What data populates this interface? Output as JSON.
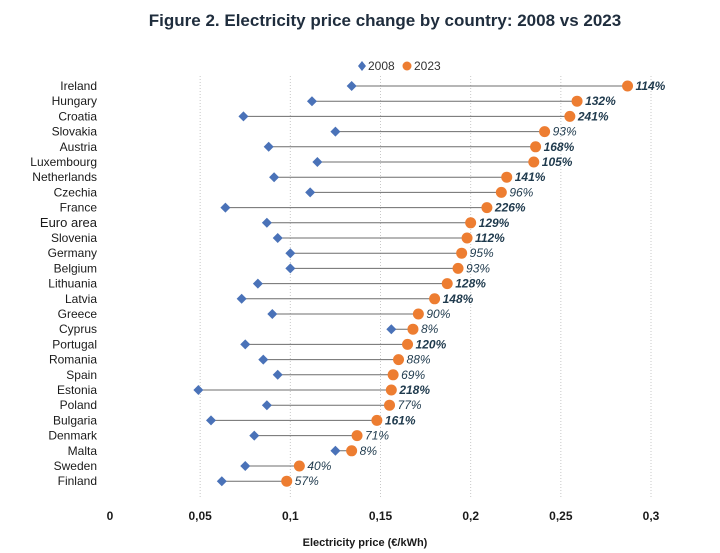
{
  "chart_data": {
    "type": "dot-plot",
    "title": "Figure 2.  Electricity price change by country: 2008 vs 2023",
    "xlabel": "Electricity price (€/kWh)",
    "ylabel": "",
    "xlim": [
      0,
      0.3
    ],
    "xticks": [
      {
        "value": 0,
        "label": "0"
      },
      {
        "value": 0.05,
        "label": "0,05"
      },
      {
        "value": 0.1,
        "label": "0,1"
      },
      {
        "value": 0.15,
        "label": "0,15"
      },
      {
        "value": 0.2,
        "label": "0,2"
      },
      {
        "value": 0.25,
        "label": "0,25"
      },
      {
        "value": 0.3,
        "label": "0,3"
      }
    ],
    "grid": true,
    "legend": {
      "position": "top-center",
      "entries": [
        {
          "label": "2008",
          "color": "#4a72b8",
          "marker": "diamond"
        },
        {
          "label": "2023",
          "color": "#ed7d31",
          "marker": "circle"
        }
      ]
    },
    "rows": [
      {
        "country": "Ireland",
        "v2008": 0.134,
        "v2023": 0.287,
        "change": "114%",
        "bold": true
      },
      {
        "country": "Hungary",
        "v2008": 0.112,
        "v2023": 0.259,
        "change": "132%",
        "bold": true
      },
      {
        "country": "Croatia",
        "v2008": 0.074,
        "v2023": 0.255,
        "change": "241%",
        "bold": true
      },
      {
        "country": "Slovakia",
        "v2008": 0.125,
        "v2023": 0.241,
        "change": "93%",
        "bold": false
      },
      {
        "country": "Austria",
        "v2008": 0.088,
        "v2023": 0.236,
        "change": "168%",
        "bold": true
      },
      {
        "country": "Luxembourg",
        "v2008": 0.115,
        "v2023": 0.235,
        "change": "105%",
        "bold": true
      },
      {
        "country": "Netherlands",
        "v2008": 0.091,
        "v2023": 0.22,
        "change": "141%",
        "bold": true
      },
      {
        "country": "Czechia",
        "v2008": 0.111,
        "v2023": 0.217,
        "change": "96%",
        "bold": false
      },
      {
        "country": "France",
        "v2008": 0.064,
        "v2023": 0.209,
        "change": "226%",
        "bold": true
      },
      {
        "country": "Euro area",
        "v2008": 0.087,
        "v2023": 0.2,
        "change": "129%",
        "bold": true,
        "emphasis": true
      },
      {
        "country": "Slovenia",
        "v2008": 0.093,
        "v2023": 0.198,
        "change": "112%",
        "bold": true
      },
      {
        "country": "Germany",
        "v2008": 0.1,
        "v2023": 0.195,
        "change": "95%",
        "bold": false
      },
      {
        "country": "Belgium",
        "v2008": 0.1,
        "v2023": 0.193,
        "change": "93%",
        "bold": false
      },
      {
        "country": "Lithuania",
        "v2008": 0.082,
        "v2023": 0.187,
        "change": "128%",
        "bold": true
      },
      {
        "country": "Latvia",
        "v2008": 0.073,
        "v2023": 0.18,
        "change": "148%",
        "bold": true
      },
      {
        "country": "Greece",
        "v2008": 0.09,
        "v2023": 0.171,
        "change": "90%",
        "bold": false
      },
      {
        "country": "Cyprus",
        "v2008": 0.156,
        "v2023": 0.168,
        "change": "8%",
        "bold": false
      },
      {
        "country": "Portugal",
        "v2008": 0.075,
        "v2023": 0.165,
        "change": "120%",
        "bold": true
      },
      {
        "country": "Romania",
        "v2008": 0.085,
        "v2023": 0.16,
        "change": "88%",
        "bold": false
      },
      {
        "country": "Spain",
        "v2008": 0.093,
        "v2023": 0.157,
        "change": "69%",
        "bold": false
      },
      {
        "country": "Estonia",
        "v2008": 0.049,
        "v2023": 0.156,
        "change": "218%",
        "bold": true
      },
      {
        "country": "Poland",
        "v2008": 0.087,
        "v2023": 0.155,
        "change": "77%",
        "bold": false
      },
      {
        "country": "Bulgaria",
        "v2008": 0.056,
        "v2023": 0.148,
        "change": "161%",
        "bold": true
      },
      {
        "country": "Denmark",
        "v2008": 0.08,
        "v2023": 0.137,
        "change": "71%",
        "bold": false
      },
      {
        "country": "Malta",
        "v2008": 0.125,
        "v2023": 0.134,
        "change": "8%",
        "bold": false
      },
      {
        "country": "Sweden",
        "v2008": 0.075,
        "v2023": 0.105,
        "change": "40%",
        "bold": false
      },
      {
        "country": "Finland",
        "v2008": 0.062,
        "v2023": 0.098,
        "change": "57%",
        "bold": false
      }
    ]
  },
  "colors": {
    "series2008": "#4a72b8",
    "series2023": "#ed7d31",
    "connector": "#6d6d6d",
    "title": "#1f2d3d",
    "pct": "#1f3a4d"
  }
}
